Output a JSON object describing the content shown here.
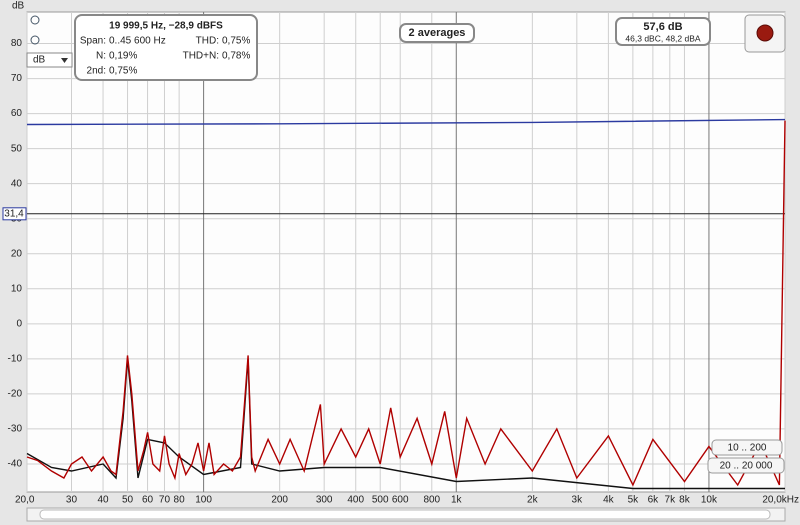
{
  "chart_data": {
    "type": "line",
    "y_label": "dB",
    "x_scale": "log",
    "xlim": [
      20,
      20000
    ],
    "ylim": [
      -48,
      89
    ],
    "grid": true,
    "yticks": [
      80,
      70,
      60,
      50,
      40,
      30,
      20,
      10,
      0,
      -10,
      -20,
      -30,
      -40
    ],
    "xticks": [
      {
        "value": 20,
        "label": "20,0"
      },
      30,
      40,
      50,
      60,
      70,
      80,
      100,
      200,
      300,
      400,
      500,
      600,
      800,
      {
        "value": 1000,
        "label": "1k"
      },
      {
        "value": 2000,
        "label": "2k"
      },
      {
        "value": 3000,
        "label": "3k"
      },
      {
        "value": 4000,
        "label": "4k"
      },
      {
        "value": 5000,
        "label": "5k"
      },
      {
        "value": 6000,
        "label": "6k"
      },
      {
        "value": 7000,
        "label": "7k"
      },
      {
        "value": 8000,
        "label": "8k"
      },
      {
        "value": 10000,
        "label": "10k"
      },
      {
        "value": 20000,
        "label": "20,0kHz"
      }
    ],
    "cursor": {
      "value": 31.4,
      "label": "31,4"
    },
    "series": [
      {
        "color": "#2b3aa0",
        "x": [
          20,
          200,
          2000,
          20000
        ],
        "values": [
          56.9,
          57.1,
          57.5,
          58.3
        ]
      },
      {
        "color": "#111111",
        "x": [
          20,
          25,
          30,
          40,
          45,
          48,
          50,
          52,
          55,
          60,
          70,
          80,
          100,
          140,
          150,
          155,
          200,
          300,
          500,
          1000,
          2000,
          5000,
          10000,
          20000
        ],
        "values": [
          -37,
          -41,
          -42,
          -40,
          -44,
          -27,
          -10,
          -22,
          -44,
          -33,
          -34,
          -38,
          -43,
          -41,
          -10,
          -40,
          -42,
          -41,
          -41,
          -45,
          -44,
          -47,
          -47,
          -47
        ]
      },
      {
        "color": "#b00000",
        "x": [
          20,
          22,
          25,
          28,
          30,
          33,
          36,
          40,
          43,
          45,
          48,
          50,
          52,
          55,
          58,
          60,
          63,
          67,
          70,
          73,
          77,
          80,
          85,
          90,
          95,
          100,
          105,
          110,
          120,
          130,
          140,
          150,
          155,
          160,
          180,
          200,
          220,
          250,
          290,
          300,
          350,
          400,
          450,
          500,
          550,
          600,
          700,
          800,
          900,
          1000,
          1100,
          1300,
          1500,
          2000,
          2500,
          3000,
          4000,
          5000,
          6000,
          8000,
          10000,
          13000,
          16000,
          19000,
          20000
        ],
        "values": [
          -38,
          -39,
          -42,
          -44,
          -40,
          -38,
          -42,
          -38,
          -42,
          -43,
          -25,
          -9,
          -20,
          -42,
          -36,
          -31,
          -40,
          -42,
          -32,
          -40,
          -44,
          -37,
          -43,
          -40,
          -34,
          -42,
          -34,
          -43,
          -40,
          -42,
          -38,
          -9,
          -38,
          -42,
          -33,
          -40,
          -33,
          -42,
          -23,
          -40,
          -30,
          -38,
          -30,
          -40,
          -24,
          -38,
          -27,
          -40,
          -25,
          -44,
          -27,
          -40,
          -30,
          -42,
          -30,
          -44,
          -32,
          -46,
          -33,
          -45,
          -35,
          -46,
          -34,
          -46,
          58
        ]
      }
    ]
  },
  "ui": {
    "readout": "19 999,5 Hz, −28,9 dBFS",
    "left_stats": [
      {
        "label": "Span:",
        "value": "0..45 600 Hz"
      },
      {
        "label": "N:",
        "value": "0,19%"
      },
      {
        "label": "2nd:",
        "value": "0,75%"
      }
    ],
    "right_stats": [
      {
        "label": "THD:",
        "value": "0,75%"
      },
      {
        "label": "THD+N:",
        "value": "0,78%"
      }
    ],
    "averages": "2 averages",
    "level": "57,6 dB",
    "level_weighted": "46,3 dBC, 48,2 dBA",
    "unit_select": "dB",
    "buttons": [
      "10 .. 200",
      "20 .. 20 000"
    ]
  }
}
